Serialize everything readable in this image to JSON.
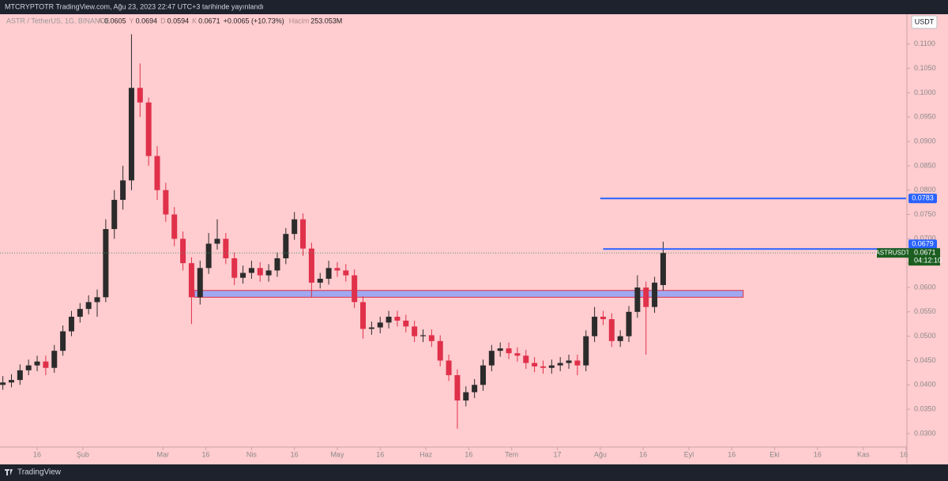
{
  "header": {
    "text": "MTCRYPTOTR TradingView.com, Ağu 23, 2023 22:47 UTC+3 tarihinde yayınlandı"
  },
  "footer": {
    "brand": "TradingView"
  },
  "chart_data": {
    "type": "candlestick",
    "title": "ASTR / TetherUS, 1G, BINANCE",
    "currency": "USDT",
    "legend": {
      "open_label": "A",
      "high_label": "Y",
      "low_label": "D",
      "close_label": "K",
      "change": "+0.0065 (+10.73%)",
      "volume_label": "Hacim",
      "volume": "253.053M"
    },
    "symbol": "ASTRUSDT",
    "countdown": "04:12:10",
    "up_color": "#2b2b2b",
    "down_color": "#e0304a",
    "x": [
      "2023-01-04",
      "2023-01-07",
      "2023-01-10",
      "2023-01-13",
      "2023-01-16",
      "2023-01-19",
      "2023-01-22",
      "2023-01-25",
      "2023-01-28",
      "2023-01-31",
      "2023-02-03",
      "2023-02-06",
      "2023-02-09",
      "2023-02-12",
      "2023-02-15",
      "2023-02-18",
      "2023-02-21",
      "2023-02-24",
      "2023-02-27",
      "2023-03-02",
      "2023-03-05",
      "2023-03-08",
      "2023-03-11",
      "2023-03-14",
      "2023-03-17",
      "2023-03-20",
      "2023-03-23",
      "2023-03-26",
      "2023-03-29",
      "2023-04-01",
      "2023-04-04",
      "2023-04-07",
      "2023-04-10",
      "2023-04-13",
      "2023-04-16",
      "2023-04-19",
      "2023-04-22",
      "2023-04-25",
      "2023-04-28",
      "2023-05-01",
      "2023-05-04",
      "2023-05-07",
      "2023-05-10",
      "2023-05-13",
      "2023-05-16",
      "2023-05-19",
      "2023-05-22",
      "2023-05-25",
      "2023-05-28",
      "2023-05-31",
      "2023-06-03",
      "2023-06-06",
      "2023-06-09",
      "2023-06-12",
      "2023-06-15",
      "2023-06-18",
      "2023-06-21",
      "2023-06-24",
      "2023-06-27",
      "2023-06-30",
      "2023-07-03",
      "2023-07-06",
      "2023-07-09",
      "2023-07-12",
      "2023-07-15",
      "2023-07-18",
      "2023-07-21",
      "2023-07-24",
      "2023-07-27",
      "2023-07-30",
      "2023-08-02",
      "2023-08-05",
      "2023-08-08",
      "2023-08-11",
      "2023-08-14",
      "2023-08-17",
      "2023-08-20",
      "2023-08-23"
    ],
    "candles": [
      [
        0.04,
        0.0418,
        0.039,
        0.0405
      ],
      [
        0.0405,
        0.0422,
        0.0395,
        0.041
      ],
      [
        0.041,
        0.0442,
        0.04,
        0.043
      ],
      [
        0.043,
        0.0452,
        0.042,
        0.044
      ],
      [
        0.044,
        0.046,
        0.0428,
        0.0448
      ],
      [
        0.0448,
        0.046,
        0.042,
        0.0435
      ],
      [
        0.0435,
        0.0482,
        0.0425,
        0.047
      ],
      [
        0.047,
        0.0522,
        0.046,
        0.051
      ],
      [
        0.051,
        0.0552,
        0.05,
        0.054
      ],
      [
        0.054,
        0.0568,
        0.0528,
        0.0556
      ],
      [
        0.0556,
        0.0584,
        0.0545,
        0.057
      ],
      [
        0.057,
        0.0596,
        0.054,
        0.058
      ],
      [
        0.058,
        0.074,
        0.057,
        0.072
      ],
      [
        0.072,
        0.08,
        0.07,
        0.078
      ],
      [
        0.078,
        0.085,
        0.076,
        0.082
      ],
      [
        0.082,
        0.112,
        0.08,
        0.101
      ],
      [
        0.101,
        0.106,
        0.095,
        0.098
      ],
      [
        0.098,
        0.099,
        0.085,
        0.087
      ],
      [
        0.087,
        0.089,
        0.078,
        0.08
      ],
      [
        0.08,
        0.0815,
        0.0735,
        0.075
      ],
      [
        0.075,
        0.0765,
        0.0685,
        0.07
      ],
      [
        0.07,
        0.0715,
        0.0635,
        0.065
      ],
      [
        0.065,
        0.0662,
        0.0525,
        0.058
      ],
      [
        0.058,
        0.0655,
        0.0565,
        0.064
      ],
      [
        0.064,
        0.0712,
        0.0628,
        0.069
      ],
      [
        0.069,
        0.074,
        0.0678,
        0.07
      ],
      [
        0.07,
        0.0712,
        0.0648,
        0.066
      ],
      [
        0.066,
        0.0672,
        0.0605,
        0.062
      ],
      [
        0.062,
        0.0645,
        0.0608,
        0.063
      ],
      [
        0.063,
        0.0655,
        0.0618,
        0.064
      ],
      [
        0.064,
        0.0652,
        0.0612,
        0.0625
      ],
      [
        0.0625,
        0.0648,
        0.0612,
        0.0635
      ],
      [
        0.0635,
        0.0672,
        0.0622,
        0.066
      ],
      [
        0.066,
        0.0722,
        0.0648,
        0.071
      ],
      [
        0.071,
        0.0755,
        0.0698,
        0.074
      ],
      [
        0.074,
        0.0752,
        0.0665,
        0.068
      ],
      [
        0.068,
        0.0692,
        0.058,
        0.061
      ],
      [
        0.061,
        0.063,
        0.0598,
        0.0618
      ],
      [
        0.0618,
        0.0655,
        0.0606,
        0.064
      ],
      [
        0.064,
        0.0652,
        0.0622,
        0.0635
      ],
      [
        0.0635,
        0.0648,
        0.0612,
        0.0625
      ],
      [
        0.0625,
        0.0637,
        0.0558,
        0.057
      ],
      [
        0.057,
        0.0582,
        0.0495,
        0.0515
      ],
      [
        0.0515,
        0.053,
        0.0503,
        0.0518
      ],
      [
        0.0518,
        0.054,
        0.0506,
        0.0528
      ],
      [
        0.0528,
        0.0552,
        0.0516,
        0.054
      ],
      [
        0.054,
        0.0552,
        0.052,
        0.0532
      ],
      [
        0.0532,
        0.0544,
        0.0508,
        0.052
      ],
      [
        0.052,
        0.0532,
        0.0488,
        0.05
      ],
      [
        0.05,
        0.0514,
        0.0488,
        0.0502
      ],
      [
        0.0502,
        0.0514,
        0.0478,
        0.049
      ],
      [
        0.049,
        0.0502,
        0.0438,
        0.045
      ],
      [
        0.045,
        0.0462,
        0.0408,
        0.042
      ],
      [
        0.042,
        0.0432,
        0.031,
        0.0368
      ],
      [
        0.0368,
        0.0397,
        0.0356,
        0.0385
      ],
      [
        0.0385,
        0.0412,
        0.0373,
        0.04
      ],
      [
        0.04,
        0.0452,
        0.0388,
        0.044
      ],
      [
        0.044,
        0.0482,
        0.0428,
        0.047
      ],
      [
        0.047,
        0.0487,
        0.0458,
        0.0475
      ],
      [
        0.0475,
        0.0487,
        0.0453,
        0.0465
      ],
      [
        0.0465,
        0.0477,
        0.0448,
        0.046
      ],
      [
        0.046,
        0.0472,
        0.0433,
        0.0445
      ],
      [
        0.0445,
        0.0457,
        0.0426,
        0.0438
      ],
      [
        0.0438,
        0.045,
        0.0423,
        0.0435
      ],
      [
        0.0435,
        0.0452,
        0.0423,
        0.044
      ],
      [
        0.044,
        0.0457,
        0.0428,
        0.0445
      ],
      [
        0.0445,
        0.0462,
        0.0433,
        0.045
      ],
      [
        0.045,
        0.0462,
        0.042,
        0.044
      ],
      [
        0.044,
        0.0512,
        0.0428,
        0.05
      ],
      [
        0.05,
        0.056,
        0.0488,
        0.054
      ],
      [
        0.054,
        0.0552,
        0.0523,
        0.0535
      ],
      [
        0.0535,
        0.0547,
        0.0478,
        0.049
      ],
      [
        0.049,
        0.0512,
        0.0478,
        0.05
      ],
      [
        0.05,
        0.0562,
        0.0488,
        0.055
      ],
      [
        0.055,
        0.0625,
        0.0538,
        0.06
      ],
      [
        0.06,
        0.0612,
        0.0462,
        0.056
      ],
      [
        0.056,
        0.0622,
        0.0548,
        0.061
      ],
      [
        0.0605,
        0.0694,
        0.0594,
        0.0671
      ]
    ],
    "levels": [
      {
        "value": 0.0783,
        "start": "2023-08-01"
      },
      {
        "value": 0.0679,
        "start": "2023-08-02"
      }
    ],
    "level_color": "#2962ff",
    "zone": {
      "top": 0.0594,
      "bottom": 0.058,
      "start": "2023-03-12",
      "end": "2023-09-20",
      "color": "#9fa8f0"
    },
    "xlim": [
      "2023-01-03",
      "2023-11-16"
    ],
    "xticks": [
      {
        "value": "2023-01-16",
        "label": "16"
      },
      {
        "value": "2023-02-01",
        "label": "Şub"
      },
      {
        "value": "2023-03-01",
        "label": "Mar"
      },
      {
        "value": "2023-03-16",
        "label": "16"
      },
      {
        "value": "2023-04-01",
        "label": "Nis"
      },
      {
        "value": "2023-04-16",
        "label": "16"
      },
      {
        "value": "2023-05-01",
        "label": "May"
      },
      {
        "value": "2023-05-16",
        "label": "16"
      },
      {
        "value": "2023-06-01",
        "label": "Haz"
      },
      {
        "value": "2023-06-16",
        "label": "16"
      },
      {
        "value": "2023-07-01",
        "label": "Tem"
      },
      {
        "value": "2023-07-17",
        "label": "17"
      },
      {
        "value": "2023-08-01",
        "label": "Ağu"
      },
      {
        "value": "2023-08-16",
        "label": "16"
      },
      {
        "value": "2023-09-01",
        "label": "Eyl"
      },
      {
        "value": "2023-09-16",
        "label": "16"
      },
      {
        "value": "2023-10-01",
        "label": "Eki"
      },
      {
        "value": "2023-10-16",
        "label": "16"
      },
      {
        "value": "2023-11-01",
        "label": "Kas"
      },
      {
        "value": "2023-11-16",
        "label": "16"
      }
    ],
    "ylim": [
      0.0274,
      0.1158
    ],
    "yticks": [
      {
        "value": 0.03,
        "label": "0.0300"
      },
      {
        "value": 0.035,
        "label": "0.0350"
      },
      {
        "value": 0.04,
        "label": "0.0400"
      },
      {
        "value": 0.045,
        "label": "0.0450"
      },
      {
        "value": 0.05,
        "label": "0.0500"
      },
      {
        "value": 0.055,
        "label": "0.0550"
      },
      {
        "value": 0.06,
        "label": "0.0600"
      },
      {
        "value": 0.065,
        "label": "0.0650"
      },
      {
        "value": 0.07,
        "label": "0.0700"
      },
      {
        "value": 0.075,
        "label": "0.0750"
      },
      {
        "value": 0.08,
        "label": "0.0800"
      },
      {
        "value": 0.085,
        "label": "0.0850"
      },
      {
        "value": 0.09,
        "label": "0.0900"
      },
      {
        "value": 0.095,
        "label": "0.0950"
      },
      {
        "value": 0.1,
        "label": "0.1000"
      },
      {
        "value": 0.105,
        "label": "0.1050"
      },
      {
        "value": 0.11,
        "label": "0.1100"
      }
    ],
    "grid": false
  }
}
